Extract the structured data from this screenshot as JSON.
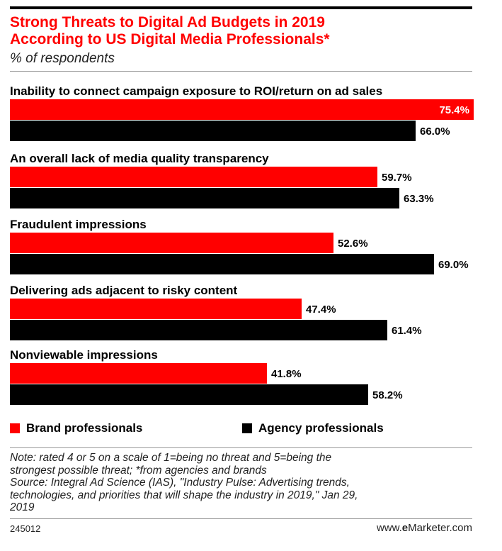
{
  "header": {
    "title_line1": "Strong Threats to Digital Ad Budgets in 2019",
    "title_line2": "According to US Digital Media Professionals*",
    "subtitle": "% of respondents"
  },
  "colors": {
    "brand": "#ff0000",
    "agency": "#000000"
  },
  "chart_data": {
    "type": "bar",
    "orientation": "horizontal",
    "title": "Strong Threats to Digital Ad Budgets in 2019 According to US Digital Media Professionals*",
    "subtitle": "% of respondents",
    "categories": [
      "Inability to connect campaign exposure to ROI/return on ad sales",
      "An overall lack of media quality transparency",
      "Fraudulent impressions",
      "Delivering ads adjacent to risky content",
      "Nonviewable impressions"
    ],
    "series": [
      {
        "name": "Brand professionals",
        "color": "#ff0000",
        "values": [
          75.4,
          59.7,
          52.6,
          47.4,
          41.8
        ]
      },
      {
        "name": "Agency professionals",
        "color": "#000000",
        "values": [
          66.0,
          63.3,
          69.0,
          61.4,
          58.2
        ]
      }
    ],
    "value_labels": [
      [
        "75.4%",
        "66.0%"
      ],
      [
        "59.7%",
        "63.3%"
      ],
      [
        "52.6%",
        "69.0%"
      ],
      [
        "47.4%",
        "61.4%"
      ],
      [
        "41.8%",
        "58.2%"
      ]
    ],
    "xlim": [
      0,
      75.4
    ],
    "grid": false,
    "legend_position": "bottom"
  },
  "legend": {
    "brand_label": "Brand professionals",
    "agency_label": "Agency professionals"
  },
  "footer": {
    "note_line1": "Note: rated 4 or 5 on a scale of 1=being no threat and 5=being the",
    "note_line2": "strongest possible threat; *from agencies and brands",
    "source_line1": "Source: Integral Ad Science (IAS), \"Industry Pulse: Advertising trends,",
    "source_line2": "technologies, and priorities that will shape the industry in 2019,\" Jan 29,",
    "source_line3": "2019",
    "chart_id": "245012",
    "brand_prefix": "www.",
    "brand_e": "e",
    "brand_rest": "Marketer.com"
  }
}
